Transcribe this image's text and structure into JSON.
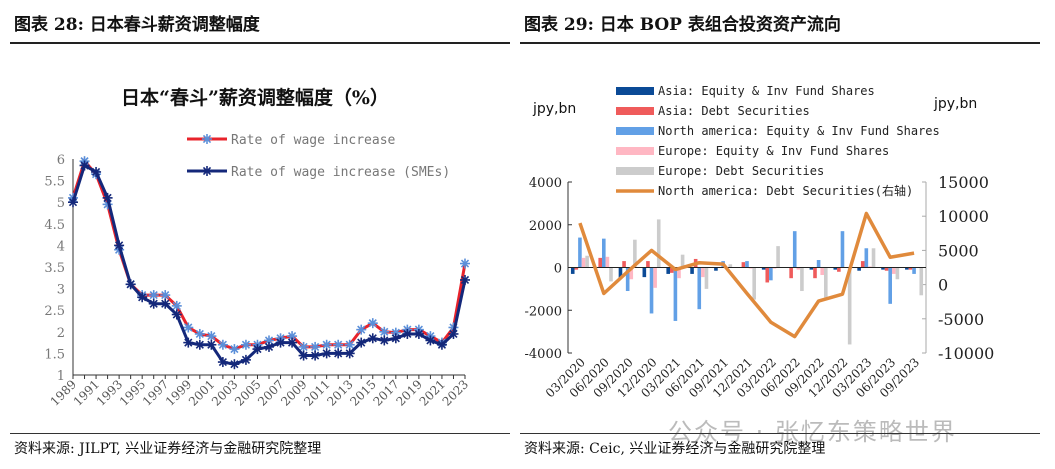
{
  "left": {
    "header": "图表 28:  日本春斗薪资调整幅度",
    "source": "资料来源: JILPT, 兴业证券经济与金融研究院整理"
  },
  "right": {
    "header": "图表 29:  日本 BOP 表组合投资资产流向",
    "source": "资料来源: Ceic, 兴业证券经济与金融研究院整理"
  },
  "watermark": "公众号 · 张忆东策略世界",
  "chart_data": [
    {
      "type": "line",
      "title": "日本“春斗”薪资调整幅度（%）",
      "x": [
        1989,
        1990,
        1991,
        1992,
        1993,
        1994,
        1995,
        1996,
        1997,
        1998,
        1999,
        2000,
        2001,
        2002,
        2003,
        2004,
        2005,
        2006,
        2007,
        2008,
        2009,
        2010,
        2011,
        2012,
        2013,
        2014,
        2015,
        2016,
        2017,
        2018,
        2019,
        2020,
        2021,
        2022,
        2023
      ],
      "xticks": [
        "1989",
        "1991",
        "1993",
        "1995",
        "1997",
        "1999",
        "2001",
        "2003",
        "2005",
        "2007",
        "2009",
        "2011",
        "2013",
        "2015",
        "2017",
        "2019",
        "2021",
        "2023"
      ],
      "yticks": [
        "1",
        "1.5",
        "2",
        "2.5",
        "3",
        "3.5",
        "4",
        "4.5",
        "5",
        "5.5",
        "6"
      ],
      "ylim": [
        1,
        6
      ],
      "legend": "top-right",
      "series": [
        {
          "name": "Rate of wage increase",
          "color": "#e8232b",
          "marker": "#5b8fd9",
          "values": [
            5.1,
            5.95,
            5.65,
            4.95,
            3.9,
            3.1,
            2.85,
            2.85,
            2.85,
            2.6,
            2.1,
            1.95,
            1.9,
            1.7,
            1.6,
            1.7,
            1.7,
            1.8,
            1.85,
            1.9,
            1.65,
            1.65,
            1.7,
            1.7,
            1.7,
            2.05,
            2.2,
            2.0,
            1.98,
            2.05,
            2.05,
            1.9,
            1.75,
            2.1,
            3.58
          ]
        },
        {
          "name": "Rate of wage increase (SMEs)",
          "color": "#14287a",
          "marker": "#14287a",
          "values": [
            5.0,
            5.85,
            5.7,
            5.1,
            4.0,
            3.1,
            2.8,
            2.65,
            2.65,
            2.4,
            1.75,
            1.7,
            1.7,
            1.3,
            1.25,
            1.35,
            1.6,
            1.65,
            1.75,
            1.75,
            1.45,
            1.45,
            1.5,
            1.5,
            1.5,
            1.75,
            1.85,
            1.8,
            1.85,
            1.95,
            1.95,
            1.8,
            1.7,
            1.95,
            3.2
          ]
        }
      ]
    },
    {
      "type": "bar",
      "ylabel": "jpy,bn",
      "y2label": "jpy,bn",
      "categories": [
        "03/2020",
        "06/2020",
        "09/2020",
        "12/2020",
        "03/2021",
        "06/2021",
        "09/2021",
        "12/2021",
        "03/2022",
        "06/2022",
        "09/2022",
        "12/2022",
        "03/2023",
        "06/2023",
        "09/2023"
      ],
      "ylim": [
        -4000,
        4000
      ],
      "yticks": [
        "4000",
        "2000",
        "0",
        "-2000",
        "-4000"
      ],
      "y2lim": [
        -10000,
        15000
      ],
      "y2ticks": [
        "15000",
        "10000",
        "5000",
        "0",
        "-5000",
        "-10000"
      ],
      "legend": "top",
      "series": [
        {
          "name": "Asia:  Equity & Inv Fund Shares",
          "color": "#0b4a96",
          "values": [
            -300,
            0,
            -500,
            -450,
            -300,
            -300,
            -150,
            0,
            -100,
            0,
            -100,
            -100,
            -150,
            -100,
            -100
          ]
        },
        {
          "name": "Asia: Debt Securities",
          "color": "#ef5b5b",
          "values": [
            -100,
            450,
            300,
            300,
            -250,
            400,
            0,
            250,
            -700,
            -500,
            -500,
            -200,
            300,
            -150,
            -100
          ]
        },
        {
          "name": "North america: Equity & Inv Fund Shares",
          "color": "#62a0e6",
          "values": [
            1400,
            1350,
            -1100,
            -2150,
            -2500,
            -1950,
            300,
            300,
            -600,
            1700,
            350,
            1700,
            900,
            -1700,
            -300
          ]
        },
        {
          "name": "Europe: Equity & Inv Fund Shares",
          "color": "#ffb7c3",
          "values": [
            450,
            500,
            -550,
            -950,
            -500,
            -450,
            0,
            -50,
            -50,
            -100,
            -350,
            0,
            50,
            -300,
            0
          ]
        },
        {
          "name": "Europe: Debt Securities",
          "color": "#cccccc",
          "values": [
            550,
            -650,
            1300,
            2250,
            600,
            -1000,
            150,
            -1500,
            1000,
            -1100,
            -1400,
            -3600,
            900,
            -550,
            -1300
          ]
        }
      ],
      "line_series": {
        "name": "North america: Debt Securities(右轴)",
        "color": "#e08a3c",
        "axis": "right",
        "values": [
          9000,
          -1300,
          1900,
          5000,
          2200,
          3200,
          3000,
          -1300,
          -5500,
          -7600,
          -2400,
          -1400,
          10400,
          4000,
          4600
        ]
      }
    }
  ]
}
